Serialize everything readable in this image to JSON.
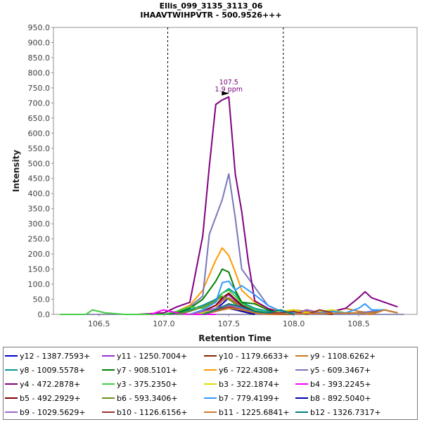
{
  "chart_data": {
    "type": "line",
    "title": "Ellis_099_3135_3113_06",
    "subtitle": "IHAAVTWIHPVTR - 500.9526+++",
    "xlabel": "Retention Time",
    "ylabel": "Intensity",
    "xlim": [
      106.15,
      108.95
    ],
    "ylim": [
      0,
      950
    ],
    "xticks": [
      "106.5",
      "107.0",
      "107.5",
      "108.0",
      "108.5"
    ],
    "yticks": [
      "0.0",
      "50.0",
      "100.0",
      "150.0",
      "200.0",
      "250.0",
      "300.0",
      "350.0",
      "400.0",
      "450.0",
      "500.0",
      "550.0",
      "600.0",
      "650.0",
      "700.0",
      "750.0",
      "800.0",
      "850.0",
      "900.0",
      "950.0"
    ],
    "grid": false,
    "legend_position": "bottom",
    "boundary_lines_x": [
      107.03,
      107.92
    ],
    "annotation": {
      "x": 107.5,
      "y": 720,
      "line1": "107.5",
      "line2": "1.9 ppm"
    },
    "series": [
      {
        "name": "y12 - 1387.7593+",
        "color": "#0000cc",
        "x": [
          107.3,
          107.4,
          107.45,
          107.5,
          107.55,
          107.6,
          107.7
        ],
        "y": [
          0,
          15,
          35,
          55,
          35,
          15,
          0
        ]
      },
      {
        "name": "y11 - 1250.7004+",
        "color": "#9933cc",
        "x": [
          107.2,
          107.3,
          107.4,
          107.45,
          107.5,
          107.55,
          107.6,
          107.7,
          107.8
        ],
        "y": [
          0,
          10,
          30,
          50,
          65,
          45,
          25,
          10,
          0
        ]
      },
      {
        "name": "y10 - 1179.6633+",
        "color": "#8b2500",
        "x": [
          107.3,
          107.4,
          107.45,
          107.5,
          107.55,
          107.6,
          107.7
        ],
        "y": [
          0,
          10,
          25,
          35,
          25,
          10,
          0
        ]
      },
      {
        "name": "y9 - 1108.6262+",
        "color": "#cc7722",
        "x": [
          107.2,
          107.3,
          107.4,
          107.45,
          107.5,
          107.55,
          107.6,
          107.7,
          107.8,
          107.9,
          108.0,
          108.1,
          108.2,
          108.3,
          108.4,
          108.5,
          108.6,
          108.7,
          108.8
        ],
        "y": [
          0,
          5,
          20,
          45,
          55,
          40,
          20,
          10,
          5,
          10,
          15,
          10,
          5,
          10,
          20,
          10,
          5,
          15,
          5
        ]
      },
      {
        "name": "y8 - 1009.5578+",
        "color": "#009999",
        "x": [
          107.0,
          107.1,
          107.2,
          107.3,
          107.4,
          107.45,
          107.5,
          107.55,
          107.6,
          107.7,
          107.8,
          107.9,
          108.0
        ],
        "y": [
          0,
          5,
          15,
          30,
          50,
          70,
          85,
          70,
          40,
          20,
          10,
          5,
          0
        ]
      },
      {
        "name": "y7 - 908.5101+",
        "color": "#008000",
        "x": [
          107.0,
          107.1,
          107.2,
          107.3,
          107.4,
          107.45,
          107.5,
          107.55,
          107.6,
          107.7,
          107.8,
          107.9
        ],
        "y": [
          0,
          5,
          20,
          50,
          110,
          150,
          140,
          80,
          40,
          35,
          15,
          5
        ]
      },
      {
        "name": "y6 - 722.4308+",
        "color": "#ff9900",
        "x": [
          107.0,
          107.1,
          107.2,
          107.3,
          107.4,
          107.45,
          107.5,
          107.55,
          107.6,
          107.7,
          107.8,
          107.9,
          108.0,
          108.1
        ],
        "y": [
          0,
          10,
          30,
          80,
          180,
          220,
          195,
          140,
          80,
          40,
          20,
          10,
          5,
          0
        ]
      },
      {
        "name": "y5 - 609.3467+",
        "color": "#7777bb",
        "x": [
          107.0,
          107.1,
          107.2,
          107.3,
          107.35,
          107.45,
          107.5,
          107.55,
          107.6,
          107.7,
          107.8,
          107.9,
          108.0,
          108.1,
          108.2,
          108.3,
          108.4,
          108.5,
          108.6,
          108.7,
          108.8
        ],
        "y": [
          0,
          10,
          25,
          60,
          265,
          380,
          465,
          320,
          150,
          90,
          30,
          10,
          5,
          0,
          5,
          10,
          5,
          5,
          10,
          15,
          5
        ]
      },
      {
        "name": "y4 - 472.2878+",
        "color": "#800080",
        "x": [
          106.8,
          107.0,
          107.1,
          107.2,
          107.3,
          107.35,
          107.4,
          107.45,
          107.5,
          107.55,
          107.6,
          107.65,
          107.7,
          107.8,
          107.9,
          108.0,
          108.1,
          108.2,
          108.3,
          108.4,
          108.5,
          108.55,
          108.6,
          108.7,
          108.8
        ],
        "y": [
          0,
          5,
          25,
          40,
          260,
          490,
          695,
          710,
          720,
          465,
          340,
          175,
          45,
          20,
          5,
          0,
          15,
          5,
          10,
          20,
          55,
          75,
          55,
          40,
          25
        ]
      },
      {
        "name": "y3 - 375.2350+",
        "color": "#44cc44",
        "x": [
          106.2,
          106.4,
          106.45,
          106.55,
          106.7,
          107.0,
          107.1,
          107.2,
          107.3,
          107.4,
          107.45,
          107.5,
          107.55,
          107.6,
          107.7,
          107.8,
          107.9,
          108.0
        ],
        "y": [
          0,
          0,
          15,
          5,
          0,
          0,
          10,
          25,
          20,
          40,
          70,
          80,
          60,
          35,
          15,
          5,
          5,
          0
        ]
      },
      {
        "name": "b3 - 322.1874+",
        "color": "#dddd00",
        "x": [
          107.2,
          107.3,
          107.4,
          107.5,
          107.6,
          107.7,
          107.8,
          107.9,
          108.0,
          108.1,
          108.2,
          108.3,
          108.4
        ],
        "y": [
          0,
          5,
          15,
          25,
          20,
          10,
          5,
          10,
          15,
          5,
          10,
          15,
          5
        ]
      },
      {
        "name": "b4 - 393.2245+",
        "color": "#ff00ff",
        "x": [
          106.9,
          107.0,
          107.05,
          107.1,
          107.2,
          107.3,
          107.4
        ],
        "y": [
          0,
          15,
          10,
          5,
          0,
          0,
          0
        ]
      },
      {
        "name": "b5 - 492.2929+",
        "color": "#800000",
        "x": [
          107.2,
          107.3,
          107.4,
          107.45,
          107.5,
          107.55,
          107.6,
          107.7,
          107.8,
          108.0,
          108.1,
          108.2,
          108.3
        ],
        "y": [
          0,
          10,
          30,
          55,
          70,
          50,
          30,
          10,
          0,
          0,
          15,
          5,
          0
        ]
      },
      {
        "name": "b6 - 593.3406+",
        "color": "#6b8e23",
        "x": [
          107.1,
          107.2,
          107.3,
          107.4,
          107.45,
          107.5,
          107.55,
          107.6,
          107.7,
          107.8
        ],
        "y": [
          0,
          10,
          25,
          45,
          60,
          50,
          35,
          20,
          10,
          0
        ]
      },
      {
        "name": "b7 - 779.4199+",
        "color": "#3399ff",
        "x": [
          107.2,
          107.3,
          107.4,
          107.45,
          107.5,
          107.55,
          107.6,
          107.7,
          107.8,
          107.9,
          108.0,
          108.1,
          108.2,
          108.3,
          108.4,
          108.5,
          108.55,
          108.6,
          108.7,
          108.8
        ],
        "y": [
          0,
          15,
          40,
          105,
          110,
          80,
          95,
          65,
          30,
          10,
          5,
          0,
          5,
          10,
          5,
          20,
          35,
          15,
          15,
          5
        ]
      },
      {
        "name": "b8 - 892.5040+",
        "color": "#0000aa",
        "x": [
          107.3,
          107.4,
          107.5,
          107.6,
          107.7
        ],
        "y": [
          0,
          10,
          20,
          10,
          0
        ]
      },
      {
        "name": "b9 - 1029.5629+",
        "color": "#9966cc",
        "x": [
          107.2,
          107.3,
          107.4,
          107.5,
          107.6,
          107.7,
          107.8,
          108.0,
          108.1,
          108.2
        ],
        "y": [
          0,
          10,
          20,
          30,
          20,
          10,
          5,
          0,
          15,
          5
        ]
      },
      {
        "name": "b10 - 1126.6156+",
        "color": "#993333",
        "x": [
          107.3,
          107.4,
          107.5,
          107.6,
          107.7,
          107.9,
          108.0,
          108.1,
          108.2,
          108.3
        ],
        "y": [
          0,
          15,
          25,
          15,
          5,
          5,
          10,
          0,
          15,
          5
        ]
      },
      {
        "name": "b11 - 1225.6841+",
        "color": "#cc7a29",
        "x": [
          107.3,
          107.4,
          107.5,
          107.6,
          107.7,
          107.8,
          108.5,
          108.6,
          108.7,
          108.8
        ],
        "y": [
          0,
          10,
          20,
          15,
          5,
          0,
          5,
          0,
          15,
          5
        ]
      },
      {
        "name": "b12 - 1326.7317+",
        "color": "#008080",
        "x": [
          107.3,
          107.4,
          107.5,
          107.6,
          107.7,
          107.8,
          107.9,
          108.0
        ],
        "y": [
          0,
          15,
          35,
          25,
          10,
          5,
          15,
          0
        ]
      }
    ]
  }
}
